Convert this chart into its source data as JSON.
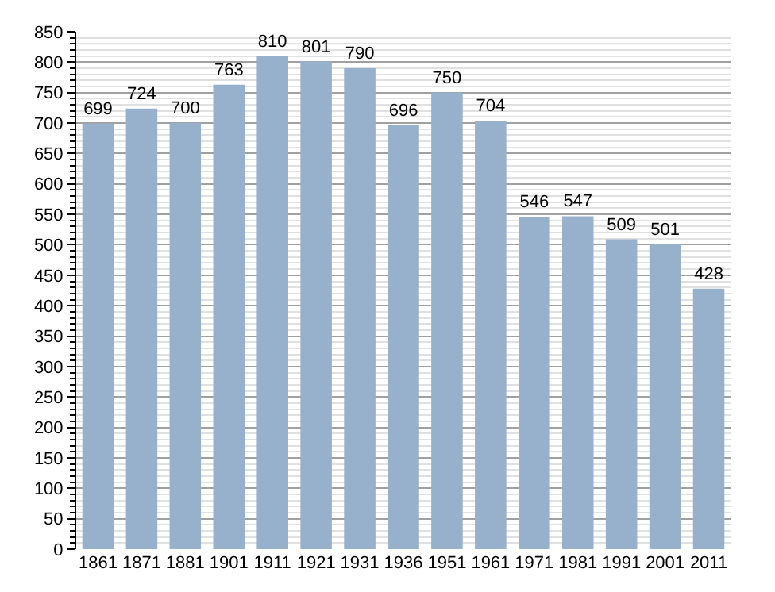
{
  "chart_data": {
    "type": "bar",
    "categories": [
      "1861",
      "1871",
      "1881",
      "1901",
      "1911",
      "1921",
      "1931",
      "1936",
      "1951",
      "1961",
      "1971",
      "1981",
      "1991",
      "2001",
      "2011"
    ],
    "values": [
      699,
      724,
      700,
      763,
      810,
      801,
      790,
      696,
      750,
      704,
      546,
      547,
      509,
      501,
      428
    ],
    "color": "#97b0cc",
    "ylim": [
      0,
      850
    ],
    "yticks": [
      0,
      50,
      100,
      150,
      200,
      250,
      300,
      350,
      400,
      450,
      500,
      550,
      600,
      650,
      700,
      750,
      800,
      850
    ],
    "grid": "y",
    "data_labels": true
  }
}
